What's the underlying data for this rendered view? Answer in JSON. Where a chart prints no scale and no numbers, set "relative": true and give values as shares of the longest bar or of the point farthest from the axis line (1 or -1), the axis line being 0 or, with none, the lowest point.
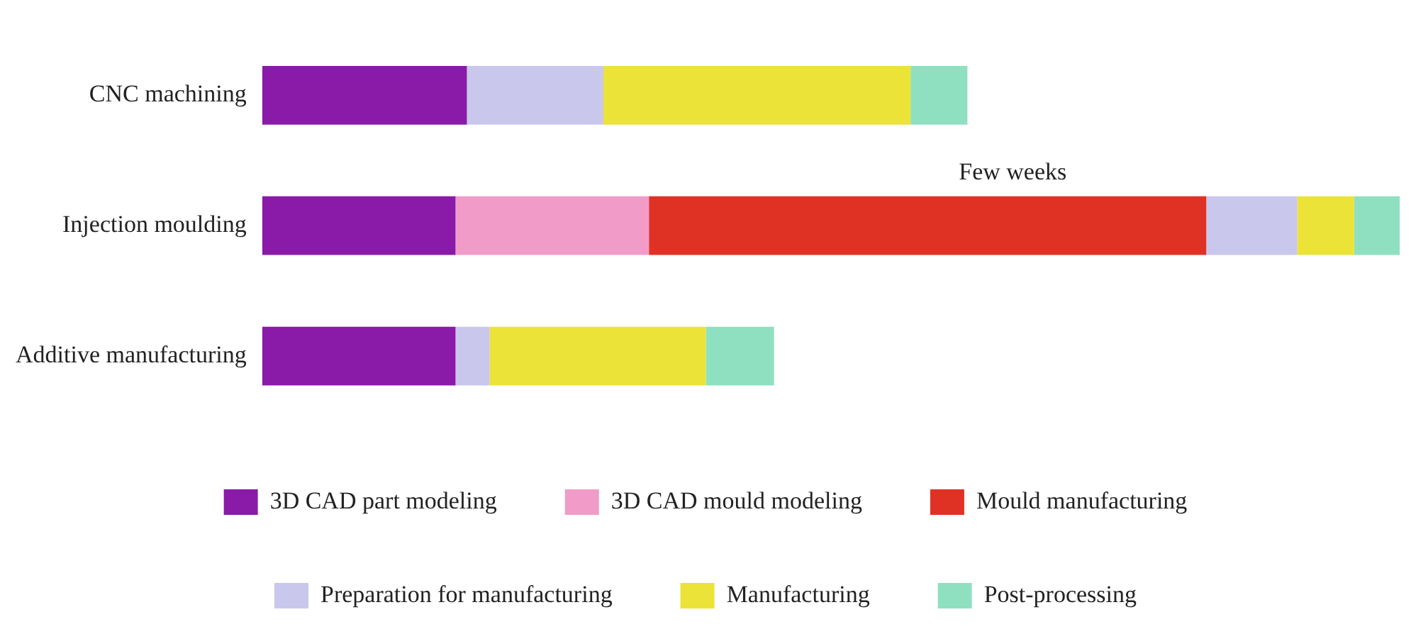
{
  "chart_data": {
    "type": "bar",
    "orientation": "horizontal",
    "stacked": true,
    "relative": true,
    "categories": [
      "CNC machining",
      "Injection moulding",
      "Additive manufacturing"
    ],
    "series": [
      {
        "name": "3D CAD part modeling",
        "color": "#8a1aa8",
        "values": [
          0.18,
          0.17,
          0.17
        ]
      },
      {
        "name": "3D CAD mould modeling",
        "color": "#f19cc8",
        "values": [
          null,
          0.17,
          null
        ]
      },
      {
        "name": "Mould manufacturing",
        "color": "#e03224",
        "values": [
          null,
          0.49,
          null
        ]
      },
      {
        "name": "Preparation for manufacturing",
        "color": "#c9c7ec",
        "values": [
          0.12,
          0.08,
          0.03
        ]
      },
      {
        "name": "Manufacturing",
        "color": "#ebe338",
        "values": [
          0.27,
          0.05,
          0.19
        ]
      },
      {
        "name": "Post-processing",
        "color": "#8fe0c0",
        "values": [
          0.05,
          0.04,
          0.06
        ]
      }
    ],
    "annotations": [
      "Few weeks"
    ],
    "legend": "bottom"
  }
}
